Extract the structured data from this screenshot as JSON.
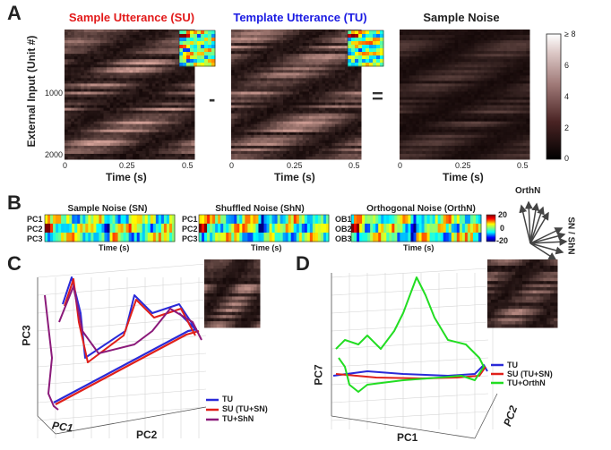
{
  "panelA": {
    "letter": "A",
    "titles": [
      "Sample Utterance (SU)",
      "Template Utterance (TU)",
      "Sample Noise"
    ],
    "title_colors": [
      "#e21a1a",
      "#1a1ae2",
      "#222222"
    ],
    "ylabel": "External Input (Unit #)",
    "yticks": [
      "1000",
      "2000"
    ],
    "xticks": [
      "0",
      "0.25",
      "0.5"
    ],
    "xlabel": "Time (s)",
    "minus": "-",
    "equals": "=",
    "colorbar_ticks": [
      "≥ 8",
      "6",
      "4",
      "2",
      "0"
    ]
  },
  "panelB": {
    "letter": "B",
    "titles": [
      "Sample Noise (SN)",
      "Shuffled Noise (ShN)",
      "Orthogonal Noise (OrthN)"
    ],
    "rows": [
      [
        "PC1",
        "PC2",
        "PC3"
      ],
      [
        "PC1",
        "PC2",
        "PC3"
      ],
      [
        "OB1",
        "OB2",
        "OB3"
      ]
    ],
    "xlabel": "Time (s)",
    "colorbar_ticks": [
      "20",
      "0",
      "-20"
    ],
    "orth_label": "OrthN",
    "sn_label": "SN / ShN"
  },
  "panelC": {
    "letter": "C",
    "xlabel": "PC2",
    "ylabel": "PC3",
    "zlabel": "PC1",
    "legend": [
      {
        "label": "TU",
        "color": "#2a2ad8"
      },
      {
        "label": "SU (TU+SN)",
        "color": "#e0201a"
      },
      {
        "label": "TU+ShN",
        "color": "#8b1a7a"
      }
    ]
  },
  "panelD": {
    "letter": "D",
    "xlabel": "PC1",
    "ylabel": "PC7",
    "zlabel": "PC2",
    "legend": [
      {
        "label": "TU",
        "color": "#2a2ad8"
      },
      {
        "label": "SU (TU+SN)",
        "color": "#e0201a"
      },
      {
        "label": "TU+OrthN",
        "color": "#22dd22"
      }
    ]
  }
}
